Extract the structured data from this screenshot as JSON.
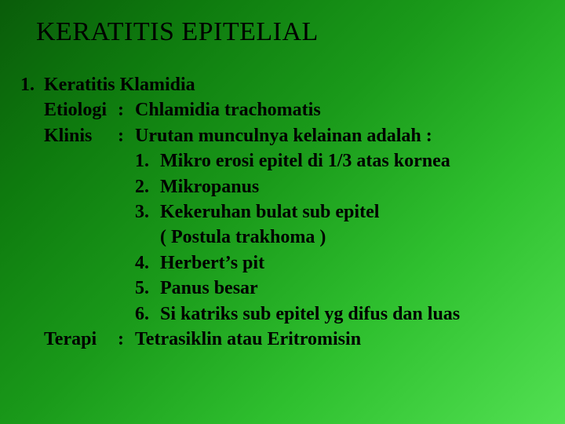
{
  "slide": {
    "title": "KERATITIS EPITELIAL",
    "title_color": "#000000",
    "title_fontsize": 34,
    "body_fontsize": 24,
    "body_fontweight": "bold",
    "background_gradient": [
      "#0a5c0a",
      "#0e7a0e",
      "#1a9a1a",
      "#2fc02f",
      "#52e052"
    ],
    "main_number": "1.",
    "heading": "Keratitis Klamidia",
    "rows": [
      {
        "label": "Etiologi",
        "colon": ":",
        "value": "Chlamidia trachomatis"
      },
      {
        "label": "Klinis",
        "colon": ":",
        "value": "Urutan munculnya kelainan adalah :"
      }
    ],
    "list": [
      {
        "n": "1.",
        "text": "Mikro erosi epitel di 1/3 atas kornea"
      },
      {
        "n": "2.",
        "text": "Mikropanus"
      },
      {
        "n": "3.",
        "text": "Kekeruhan bulat sub epitel"
      }
    ],
    "paren_line": "( Postula trakhoma )",
    "list2": [
      {
        "n": "4.",
        "text": "Herbert’s pit"
      },
      {
        "n": "5.",
        "text": "Panus besar"
      },
      {
        "n": "6.",
        "text": "Si katriks sub epitel yg difus dan luas"
      }
    ],
    "terapi": {
      "label": "Terapi",
      "colon": ":",
      "value": "Tetrasiklin atau Eritromisin"
    }
  }
}
